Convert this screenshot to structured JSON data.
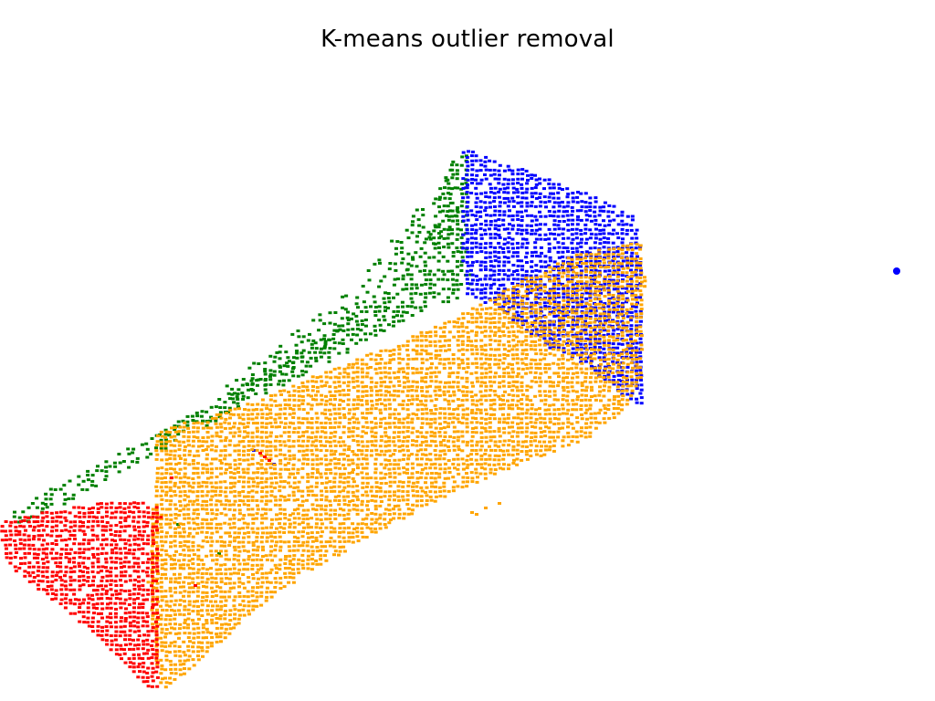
{
  "title": "K-means outlier removal",
  "clusters": [
    {
      "name": "cluster-green",
      "color": "#008000"
    },
    {
      "name": "cluster-blue",
      "color": "#0000ff"
    },
    {
      "name": "cluster-orange",
      "color": "#ffa500"
    },
    {
      "name": "cluster-red",
      "color": "#ff0000"
    }
  ]
}
